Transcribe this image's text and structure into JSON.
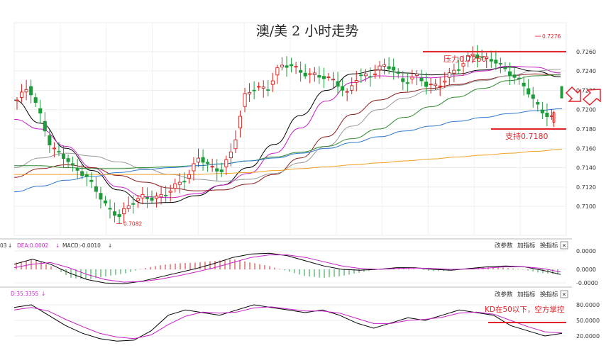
{
  "chart_data": {
    "type": "candlestick",
    "title": "澳/美 2 小时走势",
    "y_ticks": [
      "0.7260",
      "0.7240",
      "0.7220",
      "0.7200",
      "0.7180",
      "0.7160",
      "0.7140",
      "0.7120",
      "0.7100"
    ],
    "ylim": [
      0.707,
      0.729
    ],
    "extremes": {
      "high": "0.7276",
      "low": "0.7082"
    },
    "close_path": [
      0.721,
      0.7224,
      0.7196,
      0.716,
      0.7153,
      0.714,
      0.7132,
      0.7116,
      0.7097,
      0.709,
      0.7103,
      0.711,
      0.7108,
      0.7112,
      0.7122,
      0.713,
      0.7152,
      0.714,
      0.7137,
      0.716,
      0.7214,
      0.7224,
      0.722,
      0.7244,
      0.7247,
      0.7238,
      0.7236,
      0.7234,
      0.7229,
      0.7216,
      0.7236,
      0.7234,
      0.7245,
      0.7244,
      0.7227,
      0.7236,
      0.7226,
      0.7224,
      0.7236,
      0.7245,
      0.7258,
      0.7253,
      0.7251,
      0.724,
      0.7232,
      0.7218,
      0.7199,
      0.7192
    ],
    "support_resistance": [
      {
        "label": "压力0.7260",
        "value": 0.726
      },
      {
        "label": "支持0.7180",
        "value": 0.718
      }
    ],
    "moving_averages": [
      {
        "color": "#000000",
        "values": [
          0.721,
          0.7186,
          0.716,
          0.7137,
          0.7117,
          0.7103,
          0.7104,
          0.7111,
          0.7122,
          0.714,
          0.7164,
          0.7194,
          0.722,
          0.7237,
          0.7241,
          0.7238,
          0.7236,
          0.7237,
          0.7241,
          0.7244,
          0.724,
          0.7234
        ]
      },
      {
        "color": "#c61fc6",
        "values": [
          0.719,
          0.718,
          0.7162,
          0.714,
          0.712,
          0.711,
          0.7109,
          0.7113,
          0.7122,
          0.7134,
          0.7155,
          0.7181,
          0.7209,
          0.7228,
          0.7235,
          0.7234,
          0.7233,
          0.7235,
          0.724,
          0.7245,
          0.7244,
          0.7238
        ]
      },
      {
        "color": "#8b1a1a",
        "values": [
          0.713,
          0.7139,
          0.7143,
          0.714,
          0.7132,
          0.7125,
          0.7119,
          0.7116,
          0.7117,
          0.7123,
          0.7133,
          0.715,
          0.7172,
          0.7195,
          0.721,
          0.7218,
          0.7222,
          0.7226,
          0.7231,
          0.7235,
          0.7237,
          0.7236
        ]
      },
      {
        "color": "#999999",
        "values": [
          0.714,
          0.715,
          0.7155,
          0.7152,
          0.7146,
          0.7139,
          0.7133,
          0.7128,
          0.7126,
          0.7128,
          0.7134,
          0.7145,
          0.7162,
          0.7183,
          0.72,
          0.7212,
          0.722,
          0.7225,
          0.723,
          0.7235,
          0.724,
          0.7242
        ]
      },
      {
        "color": "#2e8b2e",
        "values": [
          0.7142,
          0.7142,
          0.714,
          0.7139,
          0.7139,
          0.714,
          0.7141,
          0.7142,
          0.7144,
          0.7147,
          0.7151,
          0.7156,
          0.7162,
          0.717,
          0.718,
          0.7192,
          0.7203,
          0.7213,
          0.7222,
          0.723,
          0.7235,
          0.7236
        ]
      },
      {
        "color": "#2f7bd0",
        "values": [
          0.7115,
          0.7121,
          0.7127,
          0.7131,
          0.7135,
          0.7138,
          0.714,
          0.7142,
          0.7144,
          0.7147,
          0.715,
          0.7155,
          0.716,
          0.7166,
          0.7172,
          0.7178,
          0.7183,
          0.7188,
          0.7192,
          0.7196,
          0.7199,
          0.7201
        ]
      },
      {
        "color": "#f0a020",
        "values": [
          0.7133,
          0.7133,
          0.7133,
          0.7133,
          0.7133,
          0.7133,
          0.7133,
          0.7133,
          0.7134,
          0.7135,
          0.7137,
          0.7139,
          0.7141,
          0.7143,
          0.7145,
          0.7147,
          0.7149,
          0.7151,
          0.7153,
          0.7155,
          0.7157,
          0.7159
        ]
      }
    ],
    "macd": {
      "label_prefix": "03",
      "dea_label": "DEA:0.0002",
      "macd_label": "MACD:-0.0010",
      "y_ticks": [
        "0.0000",
        "0.0000",
        "-0.0000"
      ],
      "dif": [
        0.3,
        0.6,
        0.3,
        -0.2,
        -0.6,
        -0.8,
        -0.85,
        -0.7,
        -0.45,
        -0.2,
        0.05,
        0.35,
        0.7,
        0.9,
        0.95,
        0.8,
        0.5,
        0.2,
        0.0,
        -0.05,
        0.0,
        0.1,
        0.1,
        0.0,
        -0.05,
        0.05,
        0.15,
        0.2,
        0.15,
        -0.05,
        -0.3
      ],
      "dea": [
        0.1,
        0.3,
        0.4,
        0.1,
        -0.3,
        -0.6,
        -0.75,
        -0.72,
        -0.58,
        -0.38,
        -0.15,
        0.1,
        0.4,
        0.7,
        0.85,
        0.85,
        0.7,
        0.45,
        0.2,
        0.05,
        0.0,
        0.05,
        0.08,
        0.05,
        0.0,
        0.02,
        0.08,
        0.15,
        0.15,
        0.05,
        -0.15
      ],
      "hist": [
        0.4,
        0.6,
        0.15,
        -0.5,
        -0.6,
        -0.4,
        -0.25,
        0.05,
        0.25,
        0.36,
        0.4,
        0.5,
        0.6,
        0.4,
        0.2,
        -0.1,
        -0.4,
        -0.5,
        -0.4,
        -0.2,
        0.0,
        0.1,
        0.04,
        -0.1,
        -0.1,
        0.06,
        0.14,
        0.1,
        0.0,
        -0.2,
        -0.3
      ]
    },
    "kdj": {
      "label": "D:35.3355",
      "y_ticks": [
        "80.0000",
        "50.0000",
        "20.0000"
      ],
      "k": [
        75,
        80,
        60,
        40,
        25,
        15,
        10,
        12,
        30,
        60,
        70,
        65,
        60,
        70,
        80,
        75,
        70,
        65,
        70,
        60,
        45,
        35,
        45,
        55,
        50,
        60,
        70,
        65,
        60,
        40,
        30,
        20,
        25
      ],
      "d": [
        70,
        75,
        68,
        52,
        38,
        25,
        18,
        15,
        22,
        42,
        58,
        66,
        64,
        66,
        74,
        76,
        72,
        68,
        68,
        64,
        54,
        44,
        44,
        50,
        52,
        56,
        64,
        66,
        62,
        50,
        38,
        28,
        26
      ],
      "level_line": 50,
      "annotation": "KD在50以下，空方掌控"
    }
  },
  "toolbar": {
    "btn1": "改参数",
    "btn2": "加指标",
    "btn3": "换指标",
    "close": "✕"
  }
}
